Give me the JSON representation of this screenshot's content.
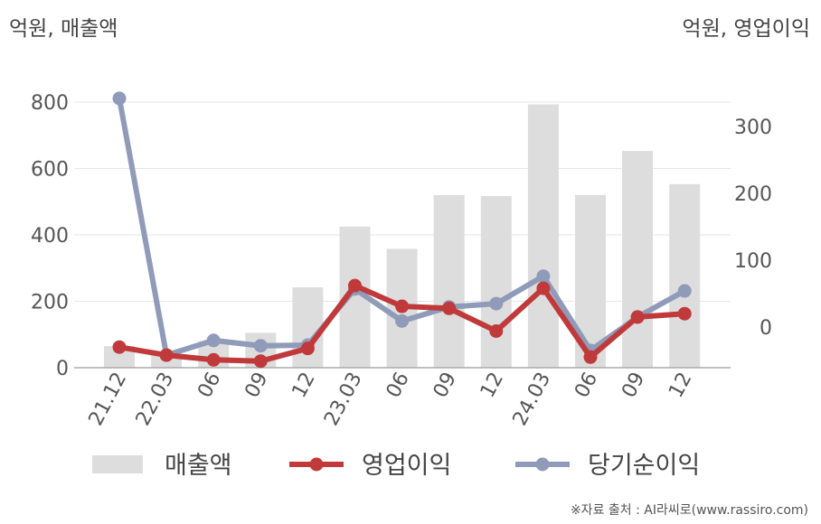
{
  "unit_left": "억원, 매출액",
  "unit_right": "억원, 영업이익",
  "source": "※자료 출처 : AI라씨로(www.rassiro.com)",
  "chart_data": {
    "type": "bar",
    "categories": [
      "21.12",
      "22.03",
      "06",
      "09",
      "12",
      "23.03",
      "06",
      "09",
      "12",
      "24.03",
      "06",
      "09",
      "12"
    ],
    "left_axis": {
      "ylim": [
        0,
        850
      ],
      "ticks": [
        0,
        200,
        400,
        600,
        800
      ]
    },
    "right_axis": {
      "ylim": [
        -60,
        340
      ],
      "ticks": [
        0,
        100,
        200,
        300
      ]
    },
    "series": [
      {
        "name": "매출액",
        "kind": "bar",
        "axis": "left",
        "color": "#dddddd",
        "values": [
          65,
          40,
          80,
          105,
          242,
          425,
          358,
          520,
          517,
          793,
          520,
          653,
          553
        ]
      },
      {
        "name": "영업이익",
        "kind": "line",
        "axis": "right",
        "color": "#c0393b",
        "values": [
          -30,
          -42,
          -49,
          -51,
          -32,
          62,
          31,
          28,
          -6,
          58,
          -45,
          15,
          20
        ]
      },
      {
        "name": "당기순이익",
        "kind": "line",
        "axis": "right",
        "color": "#8f9bb8",
        "values": [
          342,
          -42,
          -20,
          -28,
          -27,
          57,
          9,
          30,
          35,
          76,
          -35,
          15,
          54
        ]
      }
    ],
    "legend_position": "bottom",
    "grid": true
  }
}
